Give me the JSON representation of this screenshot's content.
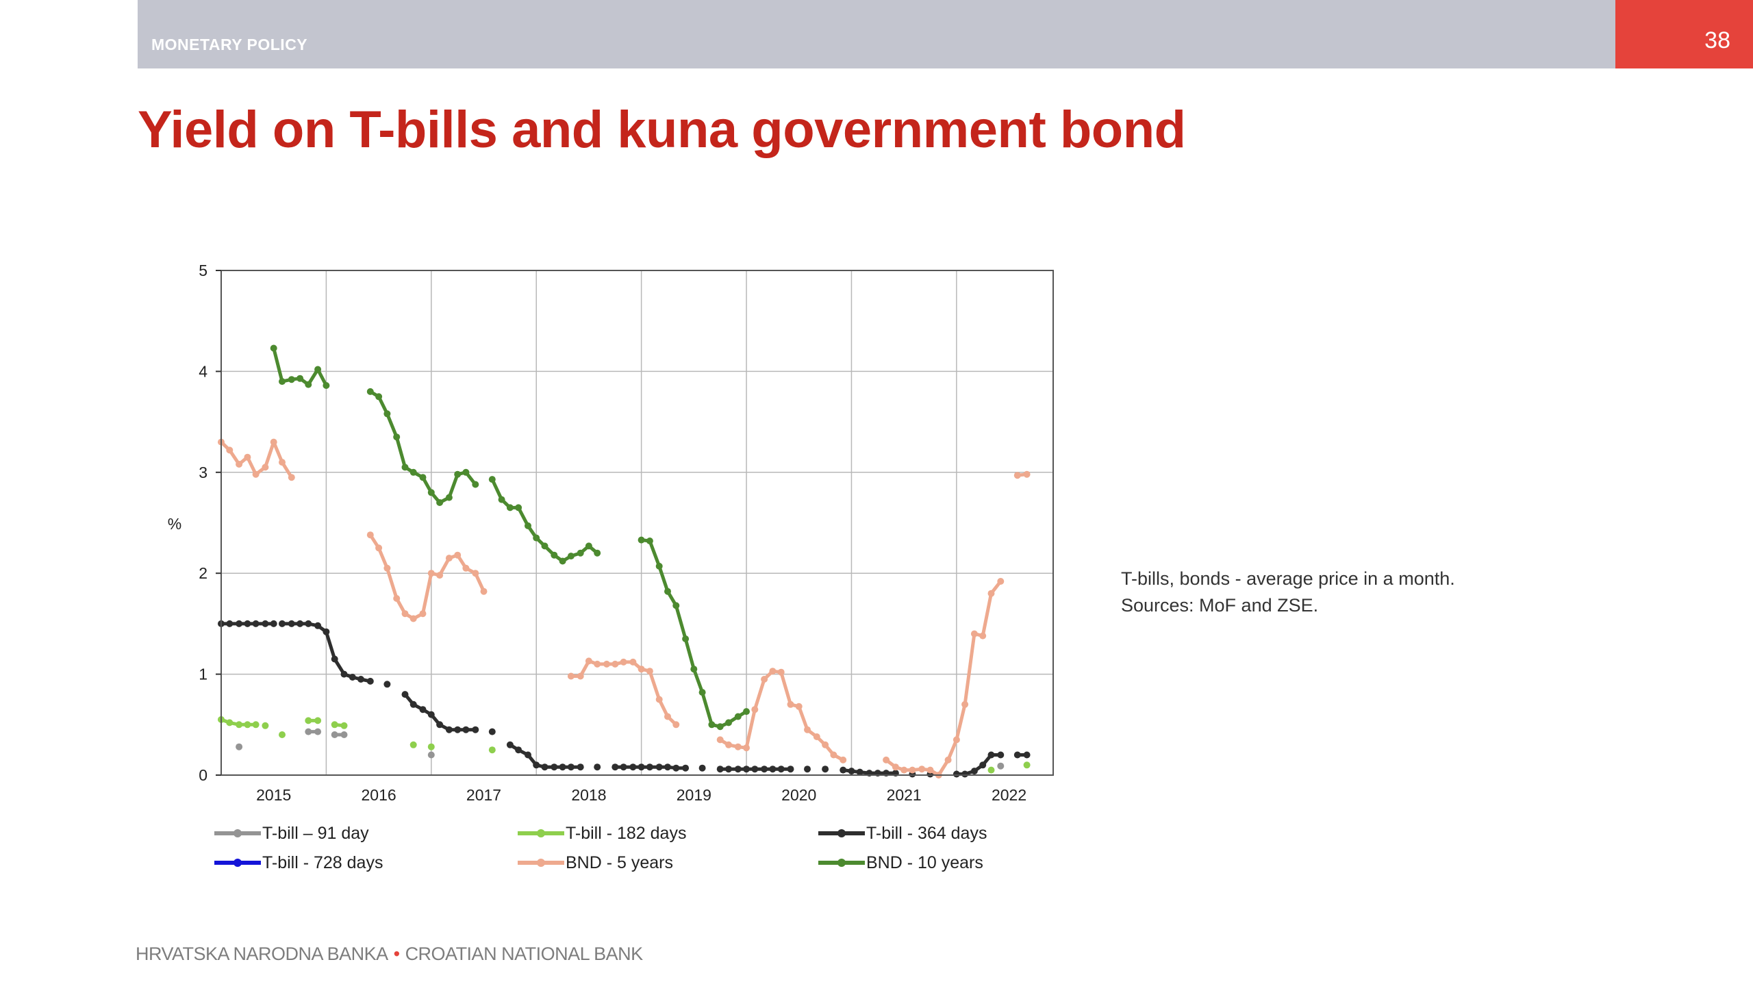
{
  "header": {
    "section": "MONETARY POLICY",
    "page_number": "38",
    "colors": {
      "bar": "#c3c5cf",
      "accent": "#e5433b"
    }
  },
  "title": "Yield on T-bills and kuna government bond",
  "note": {
    "line1": "T-bills, bonds - average price in a month.",
    "line2": "Sources: MoF and ZSE."
  },
  "footer": {
    "left": "HRVATSKA NARODNA BANKA",
    "separator": "•",
    "right": "CROATIAN NATIONAL BANK"
  },
  "chart_data": {
    "type": "line",
    "title": "",
    "xlabel": "",
    "ylabel": "%",
    "xlim": [
      2014.5,
      2022.42
    ],
    "ylim": [
      0,
      5
    ],
    "yticks": [
      0,
      1,
      2,
      3,
      4,
      5
    ],
    "xticks": [
      2015,
      2016,
      2017,
      2018,
      2019,
      2020,
      2021,
      2022
    ],
    "xtick_labels": [
      "2015",
      "2016",
      "2017",
      "2018",
      "2019",
      "2020",
      "2021",
      "2022"
    ],
    "grid": true,
    "legend_position": "bottom",
    "series": [
      {
        "name": "T-bill –  91 day",
        "color": "#949494",
        "points": [
          [
            2014.67,
            0.28
          ],
          [
            2014.83,
            null
          ],
          [
            2015.33,
            0.43
          ],
          [
            2015.42,
            0.43
          ],
          [
            2015.5,
            null
          ],
          [
            2015.58,
            0.4
          ],
          [
            2015.67,
            0.4
          ],
          [
            2015.75,
            null
          ],
          [
            2016.5,
            0.2
          ],
          [
            2016.58,
            null
          ],
          [
            2021.92,
            0.09
          ],
          [
            2022.0,
            null
          ]
        ]
      },
      {
        "name": "T-bill -  182 days",
        "color": "#8ecf4d",
        "points": [
          [
            2014.5,
            0.55
          ],
          [
            2014.58,
            0.52
          ],
          [
            2014.67,
            0.5
          ],
          [
            2014.75,
            0.5
          ],
          [
            2014.83,
            0.5
          ],
          [
            2014.92,
            null
          ],
          [
            2014.92,
            0.49
          ],
          [
            2015.0,
            null
          ],
          [
            2015.08,
            0.4
          ],
          [
            2015.17,
            null
          ],
          [
            2015.33,
            0.54
          ],
          [
            2015.42,
            0.54
          ],
          [
            2015.5,
            null
          ],
          [
            2015.58,
            0.5
          ],
          [
            2015.67,
            0.49
          ],
          [
            2015.75,
            null
          ],
          [
            2016.33,
            0.3
          ],
          [
            2016.42,
            null
          ],
          [
            2016.5,
            0.28
          ],
          [
            2016.58,
            null
          ],
          [
            2017.08,
            0.25
          ],
          [
            2017.17,
            null
          ],
          [
            2021.83,
            0.05
          ],
          [
            2021.92,
            null
          ],
          [
            2022.17,
            0.1
          ],
          [
            2022.25,
            null
          ]
        ]
      },
      {
        "name": "T-bill - 364 days",
        "color": "#2e2e2e",
        "points": [
          [
            2014.5,
            1.5
          ],
          [
            2014.58,
            1.5
          ],
          [
            2014.67,
            1.5
          ],
          [
            2014.75,
            1.5
          ],
          [
            2014.83,
            1.5
          ],
          [
            2014.92,
            1.5
          ],
          [
            2015.0,
            1.5
          ],
          [
            2015.08,
            null
          ],
          [
            2015.08,
            1.5
          ],
          [
            2015.17,
            1.5
          ],
          [
            2015.25,
            1.5
          ],
          [
            2015.33,
            1.5
          ],
          [
            2015.42,
            1.48
          ],
          [
            2015.5,
            1.42
          ],
          [
            2015.58,
            1.15
          ],
          [
            2015.67,
            1.0
          ],
          [
            2015.75,
            0.97
          ],
          [
            2015.83,
            0.95
          ],
          [
            2015.92,
            0.93
          ],
          [
            2016.0,
            null
          ],
          [
            2016.08,
            0.9
          ],
          [
            2016.17,
            null
          ],
          [
            2016.25,
            0.8
          ],
          [
            2016.33,
            0.7
          ],
          [
            2016.42,
            0.65
          ],
          [
            2016.5,
            0.6
          ],
          [
            2016.58,
            0.5
          ],
          [
            2016.67,
            0.45
          ],
          [
            2016.75,
            0.45
          ],
          [
            2016.83,
            0.45
          ],
          [
            2016.92,
            0.45
          ],
          [
            2017.0,
            null
          ],
          [
            2017.08,
            0.43
          ],
          [
            2017.17,
            null
          ],
          [
            2017.25,
            0.3
          ],
          [
            2017.33,
            0.25
          ],
          [
            2017.42,
            0.2
          ],
          [
            2017.5,
            0.1
          ],
          [
            2017.58,
            0.08
          ],
          [
            2017.67,
            0.08
          ],
          [
            2017.75,
            0.08
          ],
          [
            2017.83,
            0.08
          ],
          [
            2017.92,
            0.08
          ],
          [
            2018.0,
            null
          ],
          [
            2018.08,
            0.08
          ],
          [
            2018.17,
            null
          ],
          [
            2018.25,
            0.08
          ],
          [
            2018.33,
            0.08
          ],
          [
            2018.42,
            0.08
          ],
          [
            2018.5,
            0.08
          ],
          [
            2018.58,
            0.08
          ],
          [
            2018.67,
            0.08
          ],
          [
            2018.75,
            0.08
          ],
          [
            2018.83,
            0.07
          ],
          [
            2018.92,
            0.07
          ],
          [
            2019.0,
            null
          ],
          [
            2019.08,
            0.07
          ],
          [
            2019.17,
            null
          ],
          [
            2019.25,
            0.06
          ],
          [
            2019.33,
            0.06
          ],
          [
            2019.42,
            0.06
          ],
          [
            2019.5,
            0.06
          ],
          [
            2019.58,
            0.06
          ],
          [
            2019.67,
            0.06
          ],
          [
            2019.75,
            0.06
          ],
          [
            2019.83,
            0.06
          ],
          [
            2019.92,
            0.06
          ],
          [
            2020.0,
            null
          ],
          [
            2020.08,
            0.06
          ],
          [
            2020.17,
            null
          ],
          [
            2020.25,
            0.06
          ],
          [
            2020.33,
            null
          ],
          [
            2020.42,
            0.05
          ],
          [
            2020.5,
            0.04
          ],
          [
            2020.58,
            0.03
          ],
          [
            2020.67,
            0.02
          ],
          [
            2020.75,
            0.02
          ],
          [
            2020.83,
            0.02
          ],
          [
            2020.92,
            0.02
          ],
          [
            2021.0,
            null
          ],
          [
            2021.08,
            0.01
          ],
          [
            2021.17,
            null
          ],
          [
            2021.25,
            0.01
          ],
          [
            2021.33,
            null
          ],
          [
            2021.5,
            0.01
          ],
          [
            2021.58,
            0.01
          ],
          [
            2021.67,
            0.04
          ],
          [
            2021.75,
            0.1
          ],
          [
            2021.83,
            0.2
          ],
          [
            2021.92,
            0.2
          ],
          [
            2022.0,
            null
          ],
          [
            2022.08,
            0.2
          ],
          [
            2022.17,
            0.2
          ],
          [
            2022.25,
            null
          ]
        ]
      },
      {
        "name": "T-bill - 728 days",
        "color": "#1414d8",
        "points": []
      },
      {
        "name": "BND - 5 years",
        "color": "#eea98e",
        "points": [
          [
            2014.5,
            3.3
          ],
          [
            2014.58,
            3.22
          ],
          [
            2014.67,
            3.08
          ],
          [
            2014.75,
            3.15
          ],
          [
            2014.83,
            2.98
          ],
          [
            2014.92,
            3.05
          ],
          [
            2015.0,
            3.3
          ],
          [
            2015.08,
            3.1
          ],
          [
            2015.17,
            2.95
          ],
          [
            2015.25,
            null
          ],
          [
            2015.92,
            2.38
          ],
          [
            2016.0,
            2.25
          ],
          [
            2016.08,
            2.05
          ],
          [
            2016.17,
            1.75
          ],
          [
            2016.25,
            1.6
          ],
          [
            2016.33,
            1.55
          ],
          [
            2016.42,
            1.6
          ],
          [
            2016.5,
            2.0
          ],
          [
            2016.58,
            1.98
          ],
          [
            2016.67,
            2.15
          ],
          [
            2016.75,
            2.18
          ],
          [
            2016.83,
            2.05
          ],
          [
            2016.92,
            2.0
          ],
          [
            2017.0,
            1.82
          ],
          [
            2017.08,
            null
          ],
          [
            2017.83,
            0.98
          ],
          [
            2017.92,
            0.98
          ],
          [
            2018.0,
            1.13
          ],
          [
            2018.08,
            1.1
          ],
          [
            2018.17,
            1.1
          ],
          [
            2018.25,
            1.1
          ],
          [
            2018.33,
            1.12
          ],
          [
            2018.42,
            1.12
          ],
          [
            2018.5,
            1.05
          ],
          [
            2018.58,
            1.03
          ],
          [
            2018.67,
            0.75
          ],
          [
            2018.75,
            0.58
          ],
          [
            2018.83,
            0.5
          ],
          [
            2018.92,
            null
          ],
          [
            2019.25,
            0.35
          ],
          [
            2019.33,
            0.3
          ],
          [
            2019.42,
            0.28
          ],
          [
            2019.5,
            0.27
          ],
          [
            2019.58,
            0.65
          ],
          [
            2019.67,
            0.95
          ],
          [
            2019.75,
            1.03
          ],
          [
            2019.83,
            1.02
          ],
          [
            2019.92,
            0.7
          ],
          [
            2020.0,
            0.68
          ],
          [
            2020.08,
            0.45
          ],
          [
            2020.17,
            0.38
          ],
          [
            2020.25,
            0.3
          ],
          [
            2020.33,
            0.2
          ],
          [
            2020.42,
            0.15
          ],
          [
            2020.5,
            null
          ],
          [
            2020.83,
            0.15
          ],
          [
            2020.92,
            0.08
          ],
          [
            2021.0,
            0.05
          ],
          [
            2021.08,
            0.05
          ],
          [
            2021.17,
            0.06
          ],
          [
            2021.25,
            0.05
          ],
          [
            2021.33,
            0.0
          ],
          [
            2021.42,
            0.15
          ],
          [
            2021.5,
            0.35
          ],
          [
            2021.58,
            0.7
          ],
          [
            2021.67,
            1.4
          ],
          [
            2021.75,
            1.38
          ],
          [
            2021.83,
            1.8
          ],
          [
            2021.92,
            1.92
          ],
          [
            2022.0,
            null
          ],
          [
            2022.08,
            2.97
          ],
          [
            2022.17,
            2.98
          ],
          [
            2022.25,
            null
          ]
        ]
      },
      {
        "name": "BND - 10 years",
        "color": "#4c8a2f",
        "points": [
          [
            2015.0,
            4.23
          ],
          [
            2015.08,
            3.9
          ],
          [
            2015.17,
            3.92
          ],
          [
            2015.25,
            3.93
          ],
          [
            2015.33,
            3.87
          ],
          [
            2015.42,
            4.02
          ],
          [
            2015.5,
            3.86
          ],
          [
            2015.58,
            null
          ],
          [
            2015.92,
            3.8
          ],
          [
            2016.0,
            3.75
          ],
          [
            2016.08,
            3.58
          ],
          [
            2016.17,
            3.35
          ],
          [
            2016.25,
            3.05
          ],
          [
            2016.33,
            3.0
          ],
          [
            2016.42,
            2.95
          ],
          [
            2016.5,
            2.8
          ],
          [
            2016.58,
            2.7
          ],
          [
            2016.67,
            2.75
          ],
          [
            2016.75,
            2.98
          ],
          [
            2016.83,
            3.0
          ],
          [
            2016.92,
            2.88
          ],
          [
            2017.0,
            null
          ],
          [
            2017.08,
            2.93
          ],
          [
            2017.17,
            2.73
          ],
          [
            2017.25,
            2.65
          ],
          [
            2017.33,
            2.65
          ],
          [
            2017.42,
            2.47
          ],
          [
            2017.5,
            2.35
          ],
          [
            2017.58,
            2.27
          ],
          [
            2017.67,
            2.18
          ],
          [
            2017.75,
            2.12
          ],
          [
            2017.83,
            2.17
          ],
          [
            2017.92,
            2.2
          ],
          [
            2018.0,
            2.27
          ],
          [
            2018.08,
            2.2
          ],
          [
            2018.17,
            null
          ],
          [
            2018.5,
            2.33
          ],
          [
            2018.58,
            2.32
          ],
          [
            2018.67,
            2.07
          ],
          [
            2018.75,
            1.82
          ],
          [
            2018.83,
            1.68
          ],
          [
            2018.92,
            1.35
          ],
          [
            2019.0,
            1.05
          ],
          [
            2019.08,
            0.82
          ],
          [
            2019.17,
            0.5
          ],
          [
            2019.25,
            0.48
          ],
          [
            2019.33,
            0.52
          ],
          [
            2019.42,
            0.58
          ],
          [
            2019.5,
            0.63
          ],
          [
            2019.58,
            null
          ]
        ]
      }
    ]
  }
}
